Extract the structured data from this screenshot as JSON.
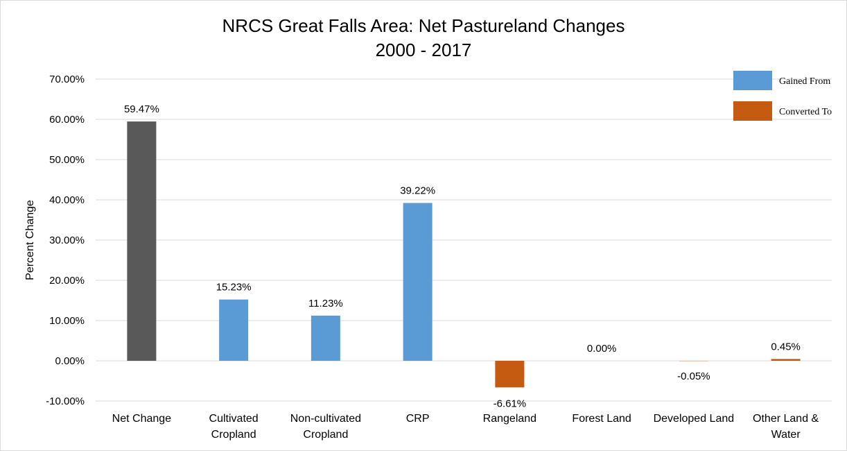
{
  "chart_data": {
    "type": "bar",
    "title": "NRCS Great Falls Area: Net Pastureland Changes",
    "subtitle": "2000 - 2017",
    "xlabel": "",
    "ylabel": "Percent Change",
    "ylim": [
      -10,
      70
    ],
    "ytick_step": 10,
    "yticks": [
      "-10.00%",
      "0.00%",
      "10.00%",
      "20.00%",
      "30.00%",
      "40.00%",
      "50.00%",
      "60.00%",
      "70.00%"
    ],
    "grid": true,
    "legend_position": "top-right",
    "legend": [
      {
        "label": "Gained From",
        "color": "#5b9bd5"
      },
      {
        "label": "Converted To",
        "color": "#c55a11"
      }
    ],
    "categories": [
      [
        "Net Change"
      ],
      [
        "Cultivated",
        "Cropland"
      ],
      [
        "Non-cultivated",
        "Cropland"
      ],
      [
        "CRP"
      ],
      [
        "Rangeland"
      ],
      [
        "Forest Land"
      ],
      [
        "Developed Land"
      ],
      [
        "Other Land &",
        "Water"
      ]
    ],
    "values": [
      59.47,
      15.23,
      11.23,
      39.22,
      -6.61,
      0.0,
      -0.05,
      0.45
    ],
    "data_labels": [
      "59.47%",
      "15.23%",
      "11.23%",
      "39.22%",
      "-6.61%",
      "0.00%",
      "-0.05%",
      "0.45%"
    ],
    "bar_colors": [
      "#595959",
      "#5b9bd5",
      "#5b9bd5",
      "#5b9bd5",
      "#c55a11",
      "#5b9bd5",
      "#c55a11",
      "#c55a11"
    ]
  }
}
